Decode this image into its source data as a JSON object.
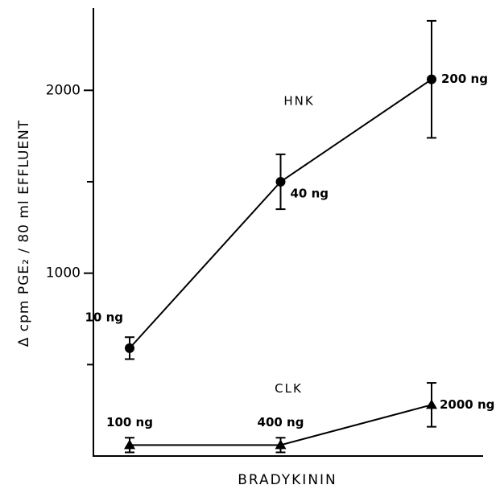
{
  "chart_data": {
    "type": "line",
    "ylabel": "Δ cpm PGE₂ / 80 ml EFFLUENT",
    "xlabel": "BRADYKININ",
    "categories": [
      null,
      null,
      null
    ],
    "ylim": [
      0,
      2450
    ],
    "yticks": [
      1000,
      2000
    ],
    "minor_yticks": [
      500,
      1500
    ],
    "series": [
      {
        "name": "HNK",
        "color": "#000000",
        "marker": "circle",
        "values": [
          590,
          1500,
          2060
        ],
        "errors": [
          60,
          150,
          320
        ],
        "point_labels": [
          "10 ng",
          "40 ng",
          "200 ng"
        ]
      },
      {
        "name": "CLK",
        "color": "#000000",
        "marker": "triangle",
        "values": [
          60,
          60,
          280
        ],
        "errors": [
          40,
          40,
          120
        ],
        "point_labels": [
          "100 ng",
          "400 ng",
          "2000 ng"
        ]
      }
    ]
  }
}
